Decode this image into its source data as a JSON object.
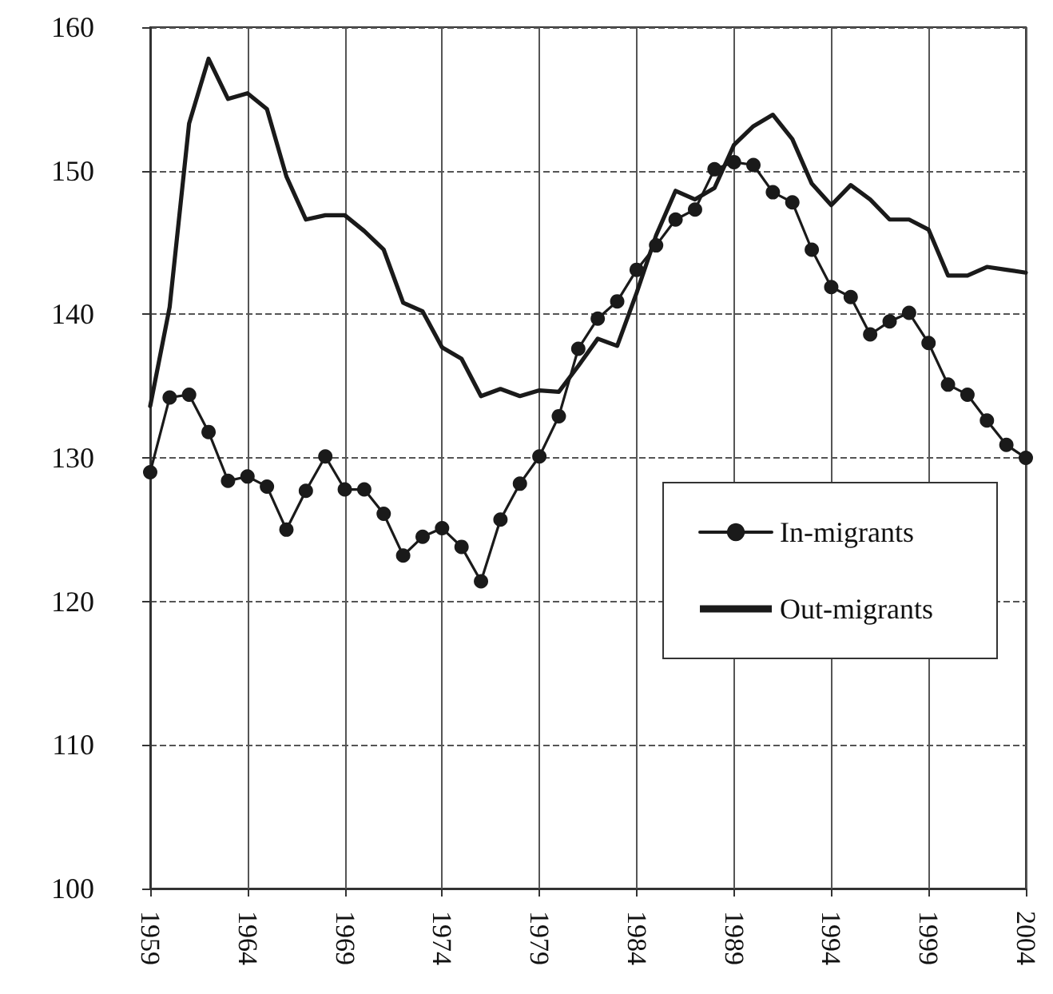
{
  "chart_data": {
    "type": "line",
    "x": [
      1959,
      1960,
      1961,
      1962,
      1963,
      1964,
      1965,
      1966,
      1967,
      1968,
      1969,
      1970,
      1971,
      1972,
      1973,
      1974,
      1975,
      1976,
      1977,
      1978,
      1979,
      1980,
      1981,
      1982,
      1983,
      1984,
      1985,
      1986,
      1987,
      1988,
      1989,
      1990,
      1991,
      1992,
      1993,
      1994,
      1995,
      1996,
      1997,
      1998,
      1999,
      2000,
      2001,
      2002,
      2003,
      2004
    ],
    "series": [
      {
        "name": "In-migrants",
        "color": "#1a1a1a",
        "marker": "circle",
        "values": [
          129,
          134.2,
          134.4,
          131.8,
          128.4,
          128.7,
          128,
          125,
          127.7,
          130.1,
          127.8,
          127.8,
          126.1,
          123.2,
          124.5,
          125.1,
          123.8,
          121.4,
          125.7,
          128.2,
          130.1,
          132.9,
          137.6,
          139.7,
          140.9,
          143.1,
          144.8,
          146.6,
          147.3,
          150.1,
          150.6,
          150.4,
          148.5,
          147.8,
          144.5,
          141.9,
          141.2,
          138.6,
          139.5,
          140.1,
          138,
          135.1,
          134.4,
          132.6,
          130.9,
          130
        ]
      },
      {
        "name": "Out-migrants",
        "color": "#1a1a1a",
        "marker": "none",
        "values": [
          133.6,
          140.5,
          153.3,
          157.8,
          155,
          155.4,
          154.3,
          149.6,
          146.6,
          146.9,
          146.9,
          145.8,
          144.5,
          140.8,
          140.2,
          137.7,
          136.9,
          134.3,
          134.8,
          134.3,
          134.7,
          134.6,
          136.4,
          138.3,
          137.8,
          141.5,
          145.5,
          148.6,
          148,
          148.8,
          151.8,
          153.1,
          153.9,
          152.2,
          149.1,
          147.6,
          149,
          148,
          146.6,
          146.6,
          145.9,
          142.7,
          142.7,
          143.3,
          143.1,
          142.9
        ]
      }
    ],
    "xlim": [
      1959,
      2004
    ],
    "xticks": [
      1959,
      1964,
      1969,
      1974,
      1979,
      1984,
      1989,
      1994,
      1999,
      2004
    ],
    "ylim": [
      100,
      160
    ],
    "yticks": [
      100,
      110,
      120,
      130,
      140,
      150,
      160
    ],
    "grid": true,
    "legend": "bottom right",
    "line_style": "solid"
  }
}
